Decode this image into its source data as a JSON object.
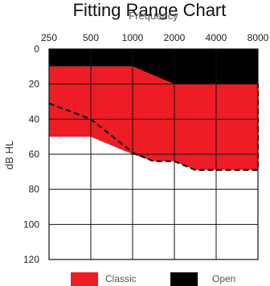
{
  "chart_data": {
    "type": "area",
    "title": "Fitting Range Chart",
    "xlabel": "Frequency",
    "ylabel": "dB HL",
    "x_scale": "log2",
    "y_inverted": true,
    "categories": [
      "250",
      "500",
      "1000",
      "2000",
      "4000",
      "8000"
    ],
    "x": [
      250,
      500,
      1000,
      2000,
      4000,
      8000
    ],
    "ylim": [
      0,
      120
    ],
    "yticks": [
      "0",
      "20",
      "40",
      "60",
      "80",
      "100",
      "120"
    ],
    "ytick_values": [
      0,
      20,
      40,
      60,
      80,
      100,
      120
    ],
    "grid": true,
    "legend_position": "bottom",
    "series": [
      {
        "name": "Open",
        "color": "#000000",
        "upper": [
          [
            250,
            0
          ],
          [
            8000,
            0
          ]
        ],
        "lower": [
          [
            250,
            10
          ],
          [
            500,
            10
          ],
          [
            1000,
            10
          ],
          [
            2000,
            20
          ],
          [
            8000,
            20
          ]
        ]
      },
      {
        "name": "Classic",
        "color": "#ee1c25",
        "upper": [
          [
            250,
            10
          ],
          [
            500,
            10
          ],
          [
            1000,
            10
          ],
          [
            2000,
            20
          ],
          [
            8000,
            20
          ]
        ],
        "lower": [
          [
            250,
            50
          ],
          [
            500,
            50
          ],
          [
            1000,
            60
          ],
          [
            1414,
            64
          ],
          [
            2000,
            64
          ],
          [
            2828,
            69
          ],
          [
            8000,
            69
          ]
        ]
      }
    ],
    "dashed_line": {
      "color": "#111111",
      "points": [
        [
          250,
          31
        ],
        [
          500,
          40
        ],
        [
          1000,
          59
        ],
        [
          1414,
          64
        ],
        [
          2000,
          64
        ],
        [
          2828,
          69
        ],
        [
          8000,
          69
        ],
        [
          8000,
          20
        ]
      ]
    }
  }
}
